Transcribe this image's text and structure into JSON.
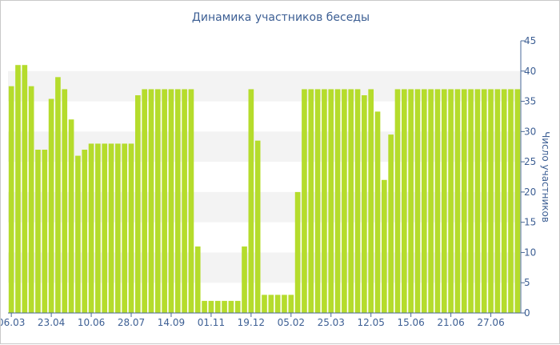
{
  "chart_data": {
    "type": "bar",
    "title": "Динамика участников беседы",
    "ylabel": "Число участников",
    "ylim": [
      0,
      45
    ],
    "y_ticks": [
      0,
      5,
      10,
      15,
      20,
      25,
      30,
      35,
      40,
      45
    ],
    "y_axis_side": "right",
    "grid": "alternating horizontal bands",
    "x_tick_labels": [
      {
        "label": "06.03",
        "index": 0
      },
      {
        "label": "23.04",
        "index": 6
      },
      {
        "label": "10.06",
        "index": 12
      },
      {
        "label": "28.07",
        "index": 18
      },
      {
        "label": "14.09",
        "index": 24
      },
      {
        "label": "01.11",
        "index": 30
      },
      {
        "label": "19.12",
        "index": 36
      },
      {
        "label": "05.02",
        "index": 42
      },
      {
        "label": "25.03",
        "index": 48
      },
      {
        "label": "12.05",
        "index": 54
      },
      {
        "label": "15.06",
        "index": 60
      },
      {
        "label": "21.06",
        "index": 66
      },
      {
        "label": "27.06",
        "index": 72
      }
    ],
    "values": [
      37.5,
      41,
      41,
      37.5,
      27,
      27,
      35.4,
      39,
      37,
      32,
      26,
      27,
      28,
      28,
      28,
      28,
      28,
      28,
      28,
      36,
      37,
      37,
      37,
      37,
      37,
      37,
      37,
      37,
      11,
      2,
      2,
      2,
      2,
      2,
      2,
      11,
      37,
      28.5,
      3,
      3,
      3,
      3,
      3,
      20,
      37,
      37,
      37,
      37,
      37,
      37,
      37,
      37,
      37,
      36,
      37,
      33.3,
      22,
      29.5,
      37,
      37,
      37,
      37,
      37,
      37,
      37,
      37,
      37,
      37,
      37,
      37,
      37,
      37,
      37,
      37,
      37,
      37,
      37
    ],
    "colors": {
      "bar": "#b5dc2c",
      "text": "#3d5f94",
      "axis": "#4a6898",
      "band": "#f3f3f3"
    }
  }
}
